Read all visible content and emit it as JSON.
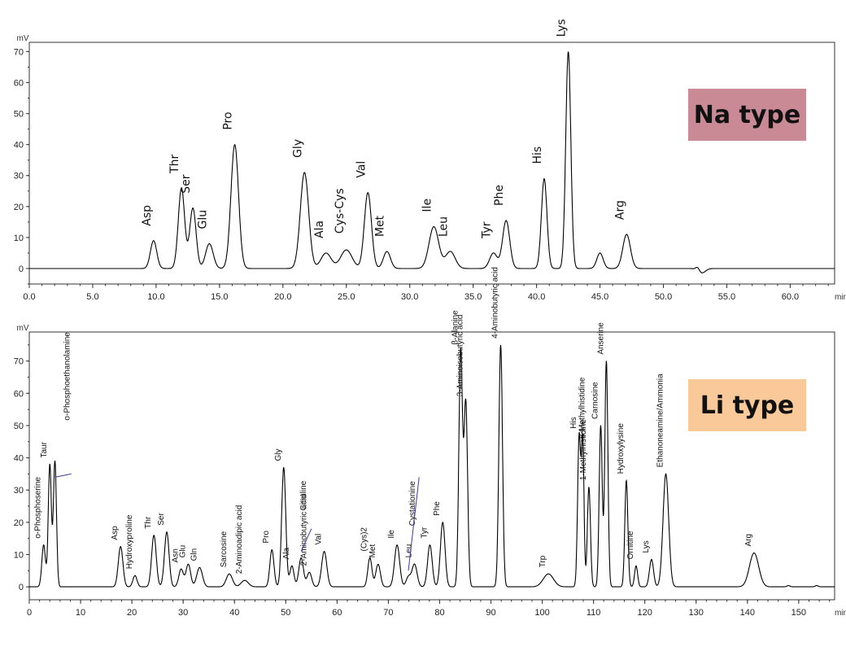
{
  "badges": {
    "na": "Na type",
    "li": "Li type"
  },
  "colors": {
    "trace": "#000000",
    "na_badge": "#c98a96",
    "li_badge": "#f9c99a",
    "connector": "#3a3aa0"
  },
  "chart_data": [
    {
      "type": "line",
      "title": "Na type",
      "ylabel": "mV",
      "xlabel": "min",
      "xlim": [
        0,
        63.5
      ],
      "ylim": [
        -5,
        73
      ],
      "x_ticks": [
        "0.0",
        "5.0",
        "10.0",
        "15.0",
        "20.0",
        "25.0",
        "30.0",
        "35.0",
        "40.0",
        "45.0",
        "50.0",
        "55.0",
        "60.0"
      ],
      "y_ticks": [
        "0",
        "10",
        "20",
        "30",
        "40",
        "50",
        "60",
        "70"
      ],
      "grid": false,
      "peaks": [
        {
          "name": "Asp",
          "x": 9.8,
          "y": 9,
          "w": 0.25
        },
        {
          "name": "Thr",
          "x": 12.0,
          "y": 26,
          "w": 0.25
        },
        {
          "name": "Ser",
          "x": 12.9,
          "y": 19.5,
          "w": 0.25
        },
        {
          "name": "Glu",
          "x": 14.2,
          "y": 8,
          "w": 0.3
        },
        {
          "name": "Pro",
          "x": 16.2,
          "y": 40,
          "w": 0.3
        },
        {
          "name": "Gly",
          "x": 21.7,
          "y": 31,
          "w": 0.33
        },
        {
          "name": "Ala",
          "x": 23.4,
          "y": 5,
          "w": 0.4
        },
        {
          "name": "Cys-Cys",
          "x": 25.0,
          "y": 6,
          "w": 0.45
        },
        {
          "name": "Val",
          "x": 26.7,
          "y": 24.5,
          "w": 0.28
        },
        {
          "name": "Met",
          "x": 28.2,
          "y": 5.5,
          "w": 0.28
        },
        {
          "name": "Ile",
          "x": 31.9,
          "y": 13.5,
          "w": 0.38
        },
        {
          "name": "Leu",
          "x": 33.2,
          "y": 5.5,
          "w": 0.38
        },
        {
          "name": "Tyr",
          "x": 36.6,
          "y": 5,
          "w": 0.3
        },
        {
          "name": "Phe",
          "x": 37.6,
          "y": 15.5,
          "w": 0.28
        },
        {
          "name": "His",
          "x": 40.6,
          "y": 29,
          "w": 0.22
        },
        {
          "name": "Lys",
          "x": 42.5,
          "y": 70,
          "w": 0.2
        },
        {
          "name": "",
          "x": 45.0,
          "y": 5,
          "w": 0.25
        },
        {
          "name": "Arg",
          "x": 47.1,
          "y": 11,
          "w": 0.3
        },
        {
          "name": "",
          "x": 52.7,
          "y": 1.2,
          "w": 0.15
        },
        {
          "name": "",
          "x": 53.0,
          "y": -1.5,
          "w": 0.3
        }
      ]
    },
    {
      "type": "line",
      "title": "Li type",
      "ylabel": "mV",
      "xlabel": "min",
      "xlim": [
        0,
        157
      ],
      "ylim": [
        -4,
        79
      ],
      "x_ticks": [
        "0",
        "10",
        "20",
        "30",
        "40",
        "50",
        "60",
        "70",
        "80",
        "90",
        "100",
        "110",
        "120",
        "130",
        "140",
        "150"
      ],
      "y_ticks": [
        "0",
        "10",
        "20",
        "30",
        "40",
        "50",
        "60",
        "70"
      ],
      "grid": false,
      "peaks": [
        {
          "name": "o-Phosphoserine",
          "x": 2.8,
          "y": 13,
          "w": 0.35
        },
        {
          "name": "Taur",
          "x": 4.0,
          "y": 38,
          "w": 0.3
        },
        {
          "name": "o-Phosphoethanolamine",
          "x": 5.0,
          "y": 39,
          "w": 0.3
        },
        {
          "name": "Asp",
          "x": 17.8,
          "y": 12.5,
          "w": 0.45
        },
        {
          "name": "Hydroxyproline",
          "x": 20.6,
          "y": 3.5,
          "w": 0.4
        },
        {
          "name": "Thr",
          "x": 24.3,
          "y": 16,
          "w": 0.45
        },
        {
          "name": "Ser",
          "x": 26.8,
          "y": 17,
          "w": 0.45
        },
        {
          "name": "Asn",
          "x": 29.6,
          "y": 5.5,
          "w": 0.45
        },
        {
          "name": "Glu",
          "x": 31.0,
          "y": 7,
          "w": 0.45
        },
        {
          "name": "Gln",
          "x": 33.2,
          "y": 6,
          "w": 0.55
        },
        {
          "name": "Sarcosine",
          "x": 39.0,
          "y": 4,
          "w": 0.6
        },
        {
          "name": "2-Aminoadipic acid",
          "x": 42.0,
          "y": 2,
          "w": 0.7
        },
        {
          "name": "Pro",
          "x": 47.3,
          "y": 11.5,
          "w": 0.4
        },
        {
          "name": "Gly",
          "x": 49.6,
          "y": 37,
          "w": 0.4
        },
        {
          "name": "Ala",
          "x": 51.2,
          "y": 6.5,
          "w": 0.4
        },
        {
          "name": "Citruline",
          "x": 53.0,
          "y": 9,
          "w": 0.45
        },
        {
          "name": "2-Aminobutyric acid",
          "x": 54.6,
          "y": 4.5,
          "w": 0.45
        },
        {
          "name": "Val",
          "x": 57.5,
          "y": 11,
          "w": 0.5
        },
        {
          "name": "(Cys)2",
          "x": 66.4,
          "y": 9,
          "w": 0.4
        },
        {
          "name": "Met",
          "x": 68.0,
          "y": 7,
          "w": 0.45
        },
        {
          "name": "Ile",
          "x": 71.7,
          "y": 13,
          "w": 0.5
        },
        {
          "name": "Cystationine",
          "x": 73.9,
          "y": 3,
          "w": 0.45
        },
        {
          "name": "Leu",
          "x": 75.1,
          "y": 7,
          "w": 0.5
        },
        {
          "name": "Tyr",
          "x": 78.1,
          "y": 13,
          "w": 0.45
        },
        {
          "name": "Phe",
          "x": 80.6,
          "y": 20,
          "w": 0.45
        },
        {
          "name": "β-Alanine",
          "x": 84.1,
          "y": 73,
          "w": 0.35
        },
        {
          "name": "3-Aminoisobutyric acid",
          "x": 85.1,
          "y": 57,
          "w": 0.35
        },
        {
          "name": "4-Aminobutyric acid",
          "x": 91.9,
          "y": 75,
          "w": 0.35
        },
        {
          "name": "Trp",
          "x": 101.2,
          "y": 4,
          "w": 1.0
        },
        {
          "name": "His",
          "x": 107.2,
          "y": 47,
          "w": 0.3
        },
        {
          "name": "3-Methylhistidine",
          "x": 107.9,
          "y": 44,
          "w": 0.25
        },
        {
          "name": "1-Methylhistidine",
          "x": 109.1,
          "y": 31,
          "w": 0.3
        },
        {
          "name": "Carnosine",
          "x": 111.4,
          "y": 50,
          "w": 0.3
        },
        {
          "name": "Anserine",
          "x": 112.5,
          "y": 70,
          "w": 0.3
        },
        {
          "name": "Hydroxylysine",
          "x": 116.4,
          "y": 33,
          "w": 0.3
        },
        {
          "name": "Ornitine",
          "x": 118.3,
          "y": 6.5,
          "w": 0.3
        },
        {
          "name": "Lys",
          "x": 121.3,
          "y": 8.5,
          "w": 0.4
        },
        {
          "name": "Ethanoneamine/Ammonia",
          "x": 124.1,
          "y": 35,
          "w": 0.55
        },
        {
          "name": "Arg",
          "x": 141.3,
          "y": 10.5,
          "w": 0.9
        },
        {
          "name": "",
          "x": 148.0,
          "y": 0.4,
          "w": 0.3
        },
        {
          "name": "",
          "x": 153.5,
          "y": 0.4,
          "w": 0.3
        }
      ]
    }
  ]
}
